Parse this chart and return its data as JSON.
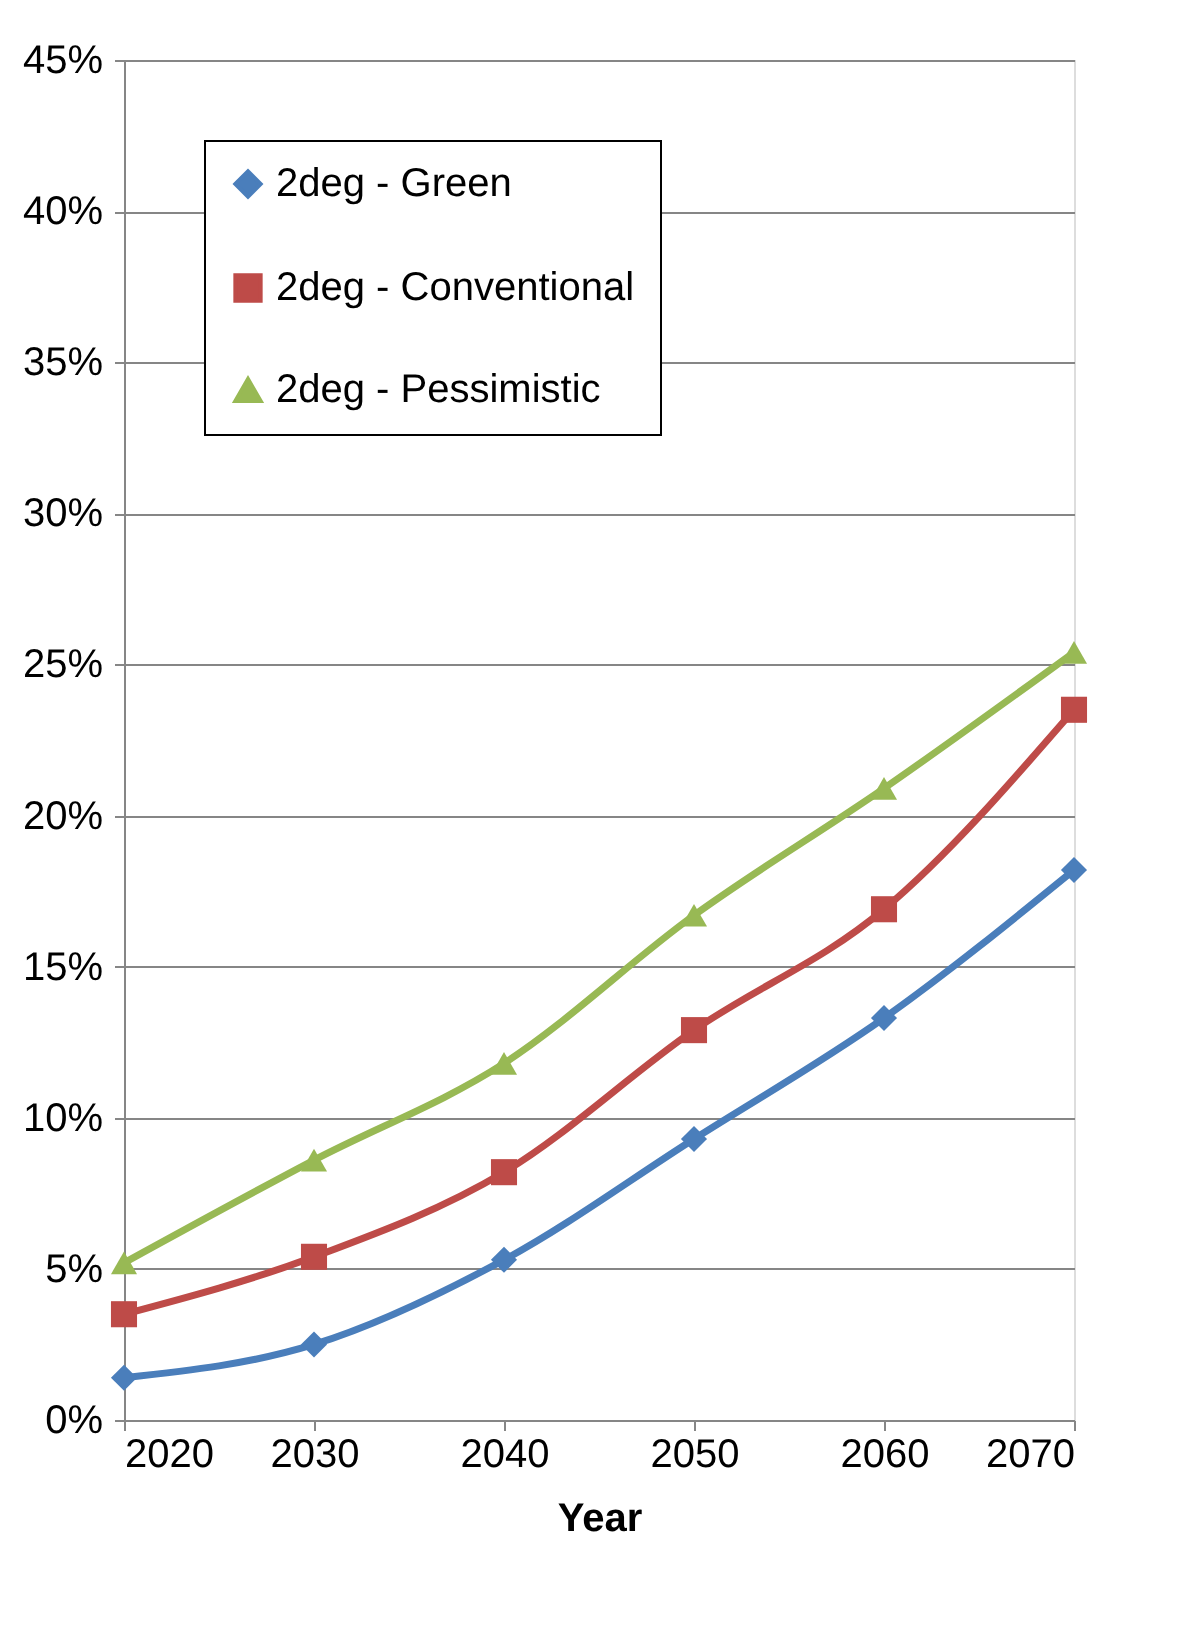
{
  "chart_data": {
    "type": "line",
    "xlabel": "Year",
    "x": [
      2020,
      2030,
      2040,
      2050,
      2060,
      2070
    ],
    "series": [
      {
        "name": "2deg - Green",
        "color": "#4a7ebb",
        "marker": "diamond",
        "values": [
          1.4,
          2.5,
          5.3,
          9.3,
          13.3,
          18.2
        ]
      },
      {
        "name": "2deg - Conventional",
        "color": "#be4b48",
        "marker": "square",
        "values": [
          3.5,
          5.4,
          8.2,
          12.9,
          16.9,
          23.5
        ]
      },
      {
        "name": "2deg - Pessimistic",
        "color": "#98b954",
        "marker": "triangle",
        "values": [
          5.2,
          8.6,
          11.8,
          16.7,
          20.9,
          25.4
        ]
      }
    ],
    "xlim": [
      2020,
      2070
    ],
    "xticks": [
      2020,
      2030,
      2040,
      2050,
      2060,
      2070
    ],
    "ylim": [
      0,
      45
    ],
    "yticks": [
      {
        "value": 0,
        "label": "0%"
      },
      {
        "value": 5,
        "label": "5%"
      },
      {
        "value": 10,
        "label": "10%"
      },
      {
        "value": 15,
        "label": "15%"
      },
      {
        "value": 20,
        "label": "20%"
      },
      {
        "value": 25,
        "label": "25%"
      },
      {
        "value": 30,
        "label": "30%"
      },
      {
        "value": 35,
        "label": "35%"
      },
      {
        "value": 40,
        "label": "40%"
      },
      {
        "value": 45,
        "label": "45%"
      }
    ],
    "grid": "y",
    "legend": "top left",
    "line_style": "solid"
  }
}
